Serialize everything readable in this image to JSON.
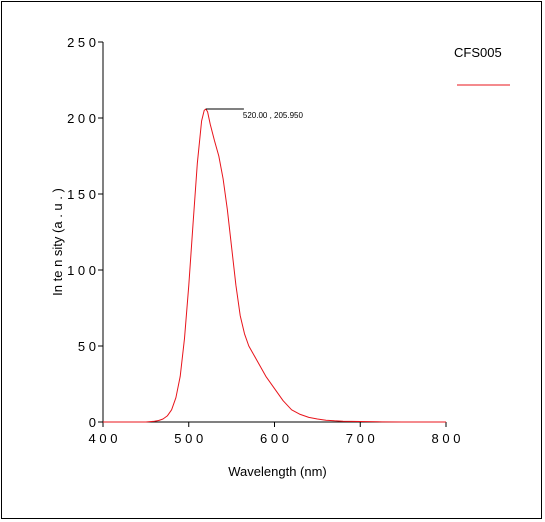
{
  "chart_data": {
    "type": "line",
    "xlabel": "Wavelength (nm)",
    "ylabel": "In te n sity  (a . u . )",
    "xlim": [
      400,
      800
    ],
    "ylim": [
      0,
      250
    ],
    "x_ticks": [
      400,
      500,
      600,
      700,
      800
    ],
    "x_tick_labels": [
      "4 0 0",
      "5 0 0",
      "6 0 0",
      "7 0 0",
      "8 0 0"
    ],
    "y_ticks": [
      0,
      50,
      100,
      150,
      200,
      250
    ],
    "y_tick_labels": [
      "0",
      "5 0",
      "1 0 0",
      "1 5 0",
      "2 0 0",
      "2 5 0"
    ],
    "grid": false,
    "legend_position": "top-right",
    "series": [
      {
        "name": "CFS005",
        "color": "#e8141b",
        "x": [
          400,
          450,
          460,
          465,
          470,
          475,
          480,
          485,
          490,
          495,
          500,
          505,
          510,
          515,
          518,
          520,
          522,
          525,
          530,
          535,
          540,
          545,
          550,
          555,
          560,
          565,
          570,
          575,
          580,
          590,
          600,
          610,
          620,
          630,
          640,
          650,
          660,
          670,
          680,
          700,
          720,
          750,
          800
        ],
        "y": [
          0,
          0,
          0.5,
          1,
          2,
          4,
          8,
          16,
          30,
          55,
          90,
          130,
          170,
          198,
          205,
          205.95,
          204,
          196,
          185,
          175,
          160,
          140,
          115,
          90,
          70,
          58,
          50,
          45,
          40,
          30,
          22,
          14,
          8,
          5,
          3,
          2,
          1.2,
          0.8,
          0.5,
          0.3,
          0.1,
          0,
          0
        ]
      }
    ],
    "annotations": [
      {
        "text": "520.00 , 205.950",
        "x": 520,
        "y": 205.95
      }
    ]
  }
}
